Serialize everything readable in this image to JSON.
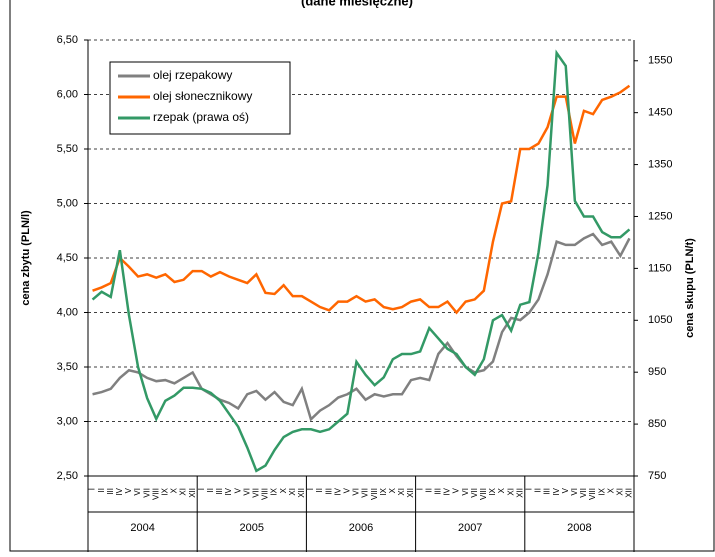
{
  "chart_data": {
    "type": "line",
    "subtitle": "(dane miesięczne)",
    "y_label": "cena zbytu (PLN/l)",
    "y2_label": "cena skupu (PLN/t)",
    "categories": [
      "I",
      "II",
      "III",
      "IV",
      "V",
      "VI",
      "VII",
      "VIII",
      "IX",
      "X",
      "XI",
      "XII",
      "I",
      "II",
      "III",
      "IV",
      "V",
      "VI",
      "VII",
      "VIII",
      "IX",
      "X",
      "XI",
      "XII",
      "I",
      "II",
      "III",
      "IV",
      "V",
      "VI",
      "VII",
      "VIII",
      "IX",
      "X",
      "XI",
      "XII",
      "I",
      "II",
      "III",
      "IV",
      "V",
      "VI",
      "VII",
      "VIII",
      "IX",
      "X",
      "XI",
      "XII",
      "I",
      "II",
      "III",
      "IV",
      "V",
      "VI",
      "VII",
      "VIII",
      "IX",
      "X",
      "XI",
      "XII"
    ],
    "groups": [
      "2004",
      "2005",
      "2006",
      "2007",
      "2008"
    ],
    "ylim": [
      2.5,
      6.5
    ],
    "yticks": [
      {
        "value": 2.5,
        "label": "2,50"
      },
      {
        "value": 3,
        "label": "3,00"
      },
      {
        "value": 3.5,
        "label": "3,50"
      },
      {
        "value": 4,
        "label": "4,00"
      },
      {
        "value": 4.5,
        "label": "4,50"
      },
      {
        "value": 5,
        "label": "5,00"
      },
      {
        "value": 5.5,
        "label": "5,50"
      },
      {
        "value": 6,
        "label": "6,00"
      },
      {
        "value": 6.5,
        "label": "6,50"
      }
    ],
    "y2lim": [
      750,
      1590
    ],
    "y2ticks": [
      750,
      850,
      950,
      1050,
      1150,
      1250,
      1350,
      1450,
      1550
    ],
    "grid": true,
    "legend": "upper left",
    "series": [
      {
        "name": "olej rzepakowy",
        "color": "#808080",
        "values": [
          3.25,
          3.27,
          3.3,
          3.4,
          3.47,
          3.45,
          3.4,
          3.37,
          3.38,
          3.35,
          3.4,
          3.45,
          3.3,
          3.25,
          3.2,
          3.17,
          3.12,
          3.25,
          3.28,
          3.2,
          3.27,
          3.18,
          3.15,
          3.3,
          3.02,
          3.1,
          3.15,
          3.22,
          3.25,
          3.3,
          3.2,
          3.25,
          3.23,
          3.25,
          3.25,
          3.38,
          3.4,
          3.38,
          3.62,
          3.72,
          3.6,
          3.5,
          3.45,
          3.47,
          3.55,
          3.82,
          3.95,
          3.93,
          4.0,
          4.12,
          4.35,
          4.65,
          4.62,
          4.62,
          4.68,
          4.72,
          4.62,
          4.65,
          4.52,
          4.68
        ]
      },
      {
        "name": "olej słonecznikowy",
        "color": "#ff6600",
        "values": [
          4.2,
          4.23,
          4.27,
          4.5,
          4.42,
          4.33,
          4.35,
          4.32,
          4.35,
          4.28,
          4.3,
          4.38,
          4.38,
          4.33,
          4.37,
          4.33,
          4.3,
          4.27,
          4.35,
          4.18,
          4.17,
          4.25,
          4.15,
          4.15,
          4.1,
          4.05,
          4.02,
          4.1,
          4.1,
          4.15,
          4.1,
          4.12,
          4.05,
          4.03,
          4.05,
          4.1,
          4.12,
          4.05,
          4.05,
          4.1,
          4.0,
          4.1,
          4.12,
          4.2,
          4.65,
          5.0,
          5.02,
          5.5,
          5.5,
          5.55,
          5.7,
          5.98,
          5.98,
          5.55,
          5.85,
          5.82,
          5.95,
          5.98,
          6.02,
          6.08
        ]
      },
      {
        "name": "rzepak (prawa oś)",
        "color": "#339966",
        "axis": "y2",
        "values": [
          1090,
          1105,
          1095,
          1185,
          1060,
          960,
          900,
          860,
          895,
          905,
          920,
          920,
          918,
          910,
          895,
          870,
          845,
          805,
          760,
          770,
          800,
          825,
          835,
          840,
          840,
          835,
          840,
          855,
          870,
          970,
          945,
          925,
          940,
          975,
          985,
          985,
          990,
          1035,
          1015,
          995,
          985,
          960,
          945,
          975,
          1050,
          1060,
          1030,
          1080,
          1085,
          1180,
          1310,
          1565,
          1540,
          1280,
          1250,
          1250,
          1220,
          1210,
          1210,
          1225
        ]
      }
    ]
  }
}
